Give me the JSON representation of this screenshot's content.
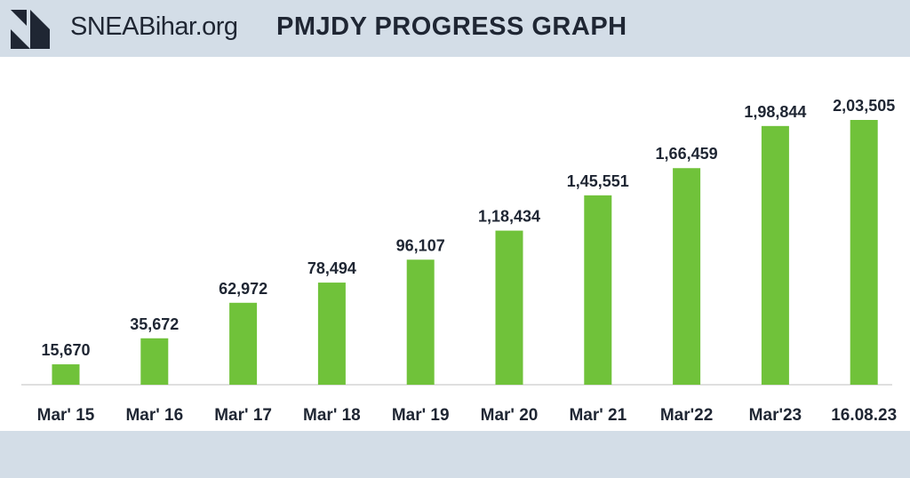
{
  "header": {
    "site_name": "SNEABihar.org",
    "title": "PMJDY PROGRESS GRAPH",
    "logo_icon": "sneabihar-logo-icon"
  },
  "colors": {
    "background": "#d3dde7",
    "bar": "#70c23a",
    "text": "#1f2633",
    "axis": "#bfbfbf"
  },
  "chart_data": {
    "type": "bar",
    "title": "PMJDY PROGRESS GRAPH",
    "xlabel": "",
    "ylabel": "",
    "categories": [
      "Mar' 15",
      "Mar' 16",
      "Mar' 17",
      "Mar' 18",
      "Mar' 19",
      "Mar' 20",
      "Mar' 21",
      "Mar'22",
      "Mar'23",
      "16.08.23"
    ],
    "values": [
      15670,
      35672,
      62972,
      78494,
      96107,
      118434,
      145551,
      166459,
      198844,
      203505
    ],
    "value_labels": [
      "15,670",
      "35,672",
      "62,972",
      "78,494",
      "96,107",
      "1,18,434",
      "1,45,551",
      "1,66,459",
      "1,98,844",
      "2,03,505"
    ],
    "ylim": [
      0,
      203505
    ],
    "grid": false,
    "legend": "none"
  }
}
